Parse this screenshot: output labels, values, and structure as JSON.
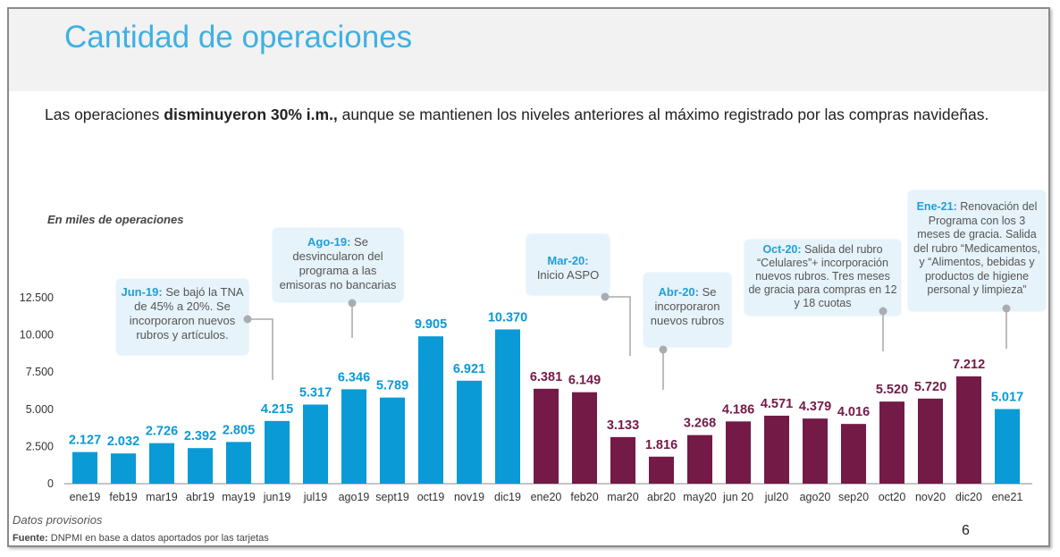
{
  "header": {
    "title": "Cantidad de operaciones"
  },
  "subtitle": {
    "pre": "Las operaciones ",
    "bold": "disminuyeron 30% i.m.,",
    "post": " aunque se mantienen los niveles anteriores al máximo registrado por las compras navideñas."
  },
  "footer": {
    "note": "Datos provisorios",
    "source_label": "Fuente:",
    "source_text": " DNPMI en base a datos aportados por  las tarjetas",
    "page": "6"
  },
  "annotations": [
    {
      "key": "Jun-19:",
      "text": " Se bajó la TNA de 45% a 20%. Se incorporaron nuevos rubros y artículos."
    },
    {
      "key": "Ago-19:",
      "text": " Se desvincularon del programa a las emisoras no bancarias"
    },
    {
      "key": "Mar-20:",
      "text": " Inicio ASPO"
    },
    {
      "key": "Abr-20:",
      "text": " Se incorporaron nuevos rubros"
    },
    {
      "key": "Oct-20:",
      "text": " Salida del rubro “Celulares”+ incorporación nuevos rubros. Tres meses de gracia para compras en 12 y 18 cuotas"
    },
    {
      "key": "Ene-21:",
      "text": " Renovación del Programa con los 3 meses de gracia. Salida del rubro “Medicamentos, y “Alimentos, bebidas y productos de higiene personal y limpieza”"
    }
  ],
  "chart_data": {
    "type": "bar",
    "ylabel": "En miles de operaciones",
    "ylim": [
      0,
      12500
    ],
    "yticks": [
      "0",
      "2.500",
      "5.000",
      "7.500",
      "10.000",
      "12.500"
    ],
    "ytick_values": [
      0,
      2500,
      5000,
      7500,
      10000,
      12500
    ],
    "grid": false,
    "categories": [
      "ene19",
      "feb19",
      "mar19",
      "abr19",
      "may19",
      "jun19",
      "jul19",
      "ago19",
      "sept19",
      "oct19",
      "nov19",
      "dic19",
      "ene20",
      "feb20",
      "mar20",
      "abr20",
      "may20",
      "jun 20",
      "jul20",
      "ago20",
      "sep20",
      "oct20",
      "nov20",
      "dic20",
      "ene21"
    ],
    "values": [
      2127,
      2032,
      2726,
      2392,
      2805,
      4215,
      5317,
      6346,
      5789,
      9905,
      6921,
      10370,
      6381,
      6149,
      3133,
      1816,
      3268,
      4186,
      4571,
      4379,
      4016,
      5520,
      5720,
      7212,
      5017
    ],
    "labels": [
      "2.127",
      "2.032",
      "2.726",
      "2.392",
      "2.805",
      "4.215",
      "5.317",
      "6.346",
      "5.789",
      "9.905",
      "6.921",
      "10.370",
      "6.381",
      "6.149",
      "3.133",
      "1.816",
      "3.268",
      "4.186",
      "4.571",
      "4.379",
      "4.016",
      "5.520",
      "5.720",
      "7.212",
      "5.017"
    ],
    "colors": {
      "blue": "#0a9ad6",
      "maroon": "#741a47"
    },
    "bar_color_groups": [
      "blue",
      "blue",
      "blue",
      "blue",
      "blue",
      "blue",
      "blue",
      "blue",
      "blue",
      "blue",
      "blue",
      "blue",
      "maroon",
      "maroon",
      "maroon",
      "maroon",
      "maroon",
      "maroon",
      "maroon",
      "maroon",
      "maroon",
      "maroon",
      "maroon",
      "maroon",
      "blue"
    ]
  }
}
